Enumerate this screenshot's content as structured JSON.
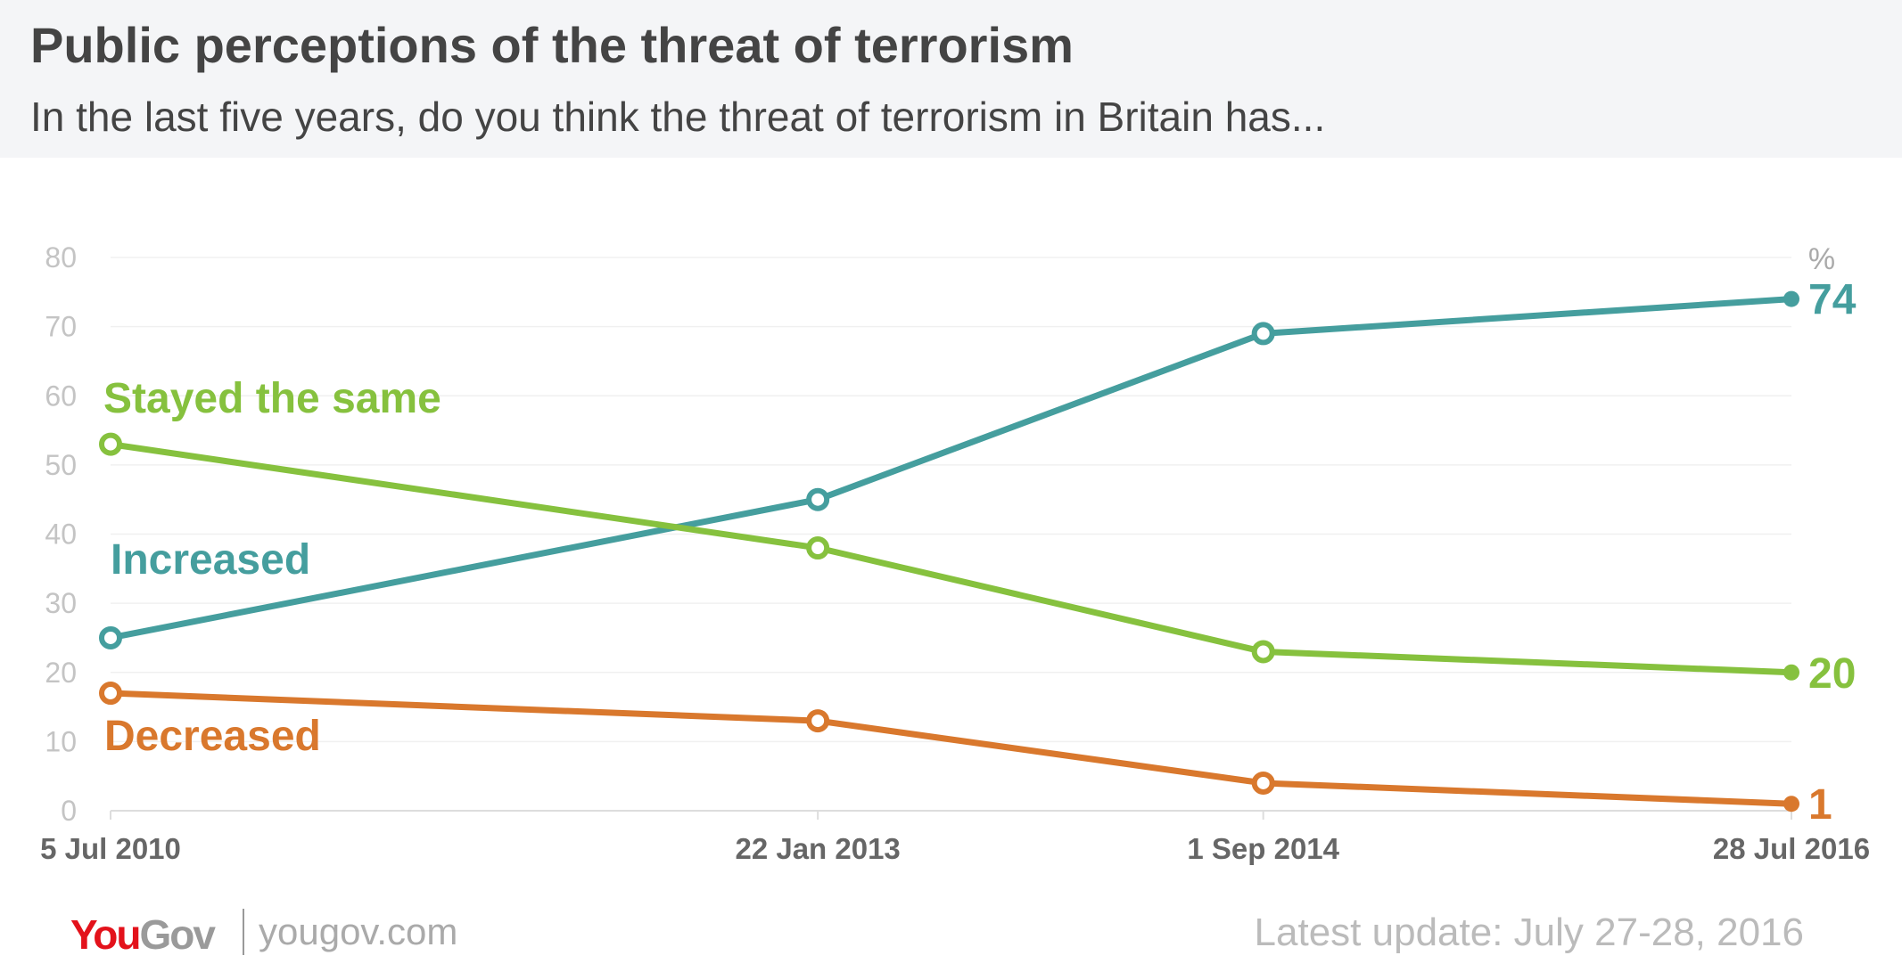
{
  "header": {
    "title": "Public perceptions of the threat of terrorism",
    "subtitle": "In the last five years, do you think the threat of terrorism in Britain has..."
  },
  "chart_data": {
    "type": "line",
    "title": "Public perceptions of the threat of terrorism",
    "subtitle": "In the last five years, do you think the threat of terrorism in Britain has...",
    "x": [
      "2010-07-05",
      "2013-01-22",
      "2014-09-01",
      "2016-07-28"
    ],
    "x_tick_labels": [
      "5 Jul 2010",
      "22 Jan 2013",
      "1 Sep 2014",
      "28 Jul 2016"
    ],
    "y_ticks": [
      0,
      10,
      20,
      30,
      40,
      50,
      60,
      70,
      80
    ],
    "ylim": [
      0,
      80
    ],
    "y_unit_label": "%",
    "grid": true,
    "series": [
      {
        "name": "Increased",
        "color": "#459e9e",
        "values": [
          25,
          45,
          69,
          74
        ],
        "end_label": "74"
      },
      {
        "name": "Stayed the same",
        "color": "#86c13e",
        "values": [
          53,
          38,
          23,
          20
        ],
        "end_label": "20"
      },
      {
        "name": "Decreased",
        "color": "#d9782d",
        "values": [
          17,
          13,
          4,
          1
        ],
        "end_label": "1"
      }
    ]
  },
  "footer": {
    "logo_you": "You",
    "logo_gov": "Gov",
    "site": "yougov.com",
    "update": "Latest update: July 27-28, 2016"
  }
}
